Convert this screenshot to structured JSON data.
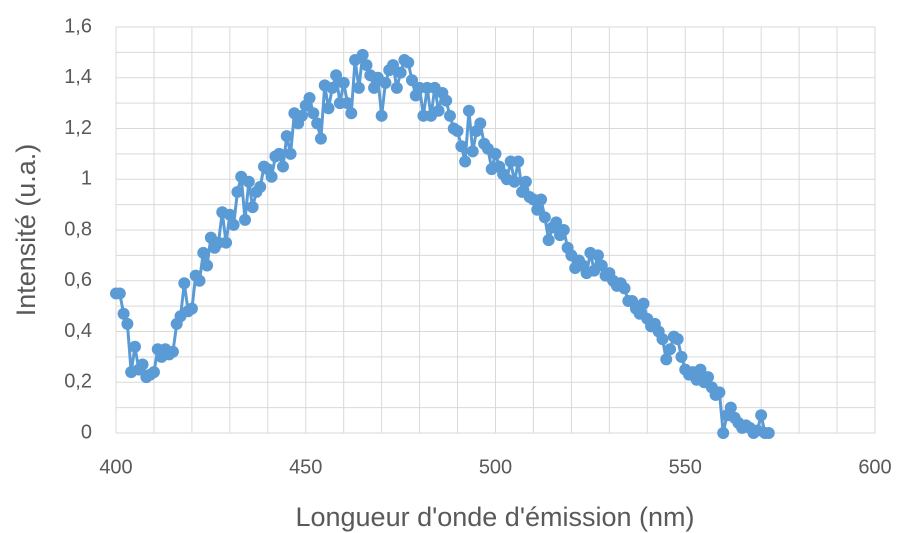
{
  "chart_data": {
    "type": "line",
    "xlabel": "Longueur d'onde d'émission (nm)",
    "ylabel": "Intensité (u.a.)",
    "color": "#5b9bd5",
    "markers": true,
    "grid": true,
    "xlim": [
      400,
      600
    ],
    "ylim": [
      0,
      1.6
    ],
    "xticks": [
      400,
      450,
      500,
      550,
      600
    ],
    "yticks": [
      0,
      {
        "value": 0.2,
        "label": "0,2"
      },
      {
        "value": 0.4,
        "label": "0,4"
      },
      {
        "value": 0.6,
        "label": "0,6"
      },
      {
        "value": 0.8,
        "label": "0,8"
      },
      1,
      {
        "value": 1.2,
        "label": "1,2"
      },
      {
        "value": 1.4,
        "label": "1,4"
      },
      {
        "value": 1.6,
        "label": "1,6"
      }
    ],
    "xminor": [
      410,
      420,
      430,
      440,
      460,
      470,
      480,
      490,
      510,
      520,
      530,
      540,
      560,
      570,
      580,
      590
    ],
    "yminor": [
      0.1,
      0.3,
      0.5,
      0.7,
      0.9,
      1.1,
      1.3,
      1.5
    ],
    "x": [
      400,
      401,
      402,
      403,
      404,
      405,
      406,
      407,
      408,
      409,
      410,
      411,
      412,
      413,
      414,
      415,
      416,
      417,
      418,
      419,
      420,
      421,
      422,
      423,
      424,
      425,
      426,
      427,
      428,
      429,
      430,
      431,
      432,
      433,
      434,
      435,
      436,
      437,
      438,
      439,
      440,
      441,
      442,
      443,
      444,
      445,
      446,
      447,
      448,
      449,
      450,
      451,
      452,
      453,
      454,
      455,
      456,
      457,
      458,
      459,
      460,
      461,
      462,
      463,
      464,
      465,
      466,
      467,
      468,
      469,
      470,
      471,
      472,
      473,
      474,
      475,
      476,
      477,
      478,
      479,
      480,
      481,
      482,
      483,
      484,
      485,
      486,
      487,
      488,
      489,
      490,
      491,
      492,
      493,
      494,
      495,
      496,
      497,
      498,
      499,
      500,
      501,
      502,
      503,
      504,
      505,
      506,
      507,
      508,
      509,
      510,
      511,
      512,
      513,
      514,
      515,
      516,
      517,
      518,
      519,
      520,
      521,
      522,
      523,
      524,
      525,
      526,
      527,
      528,
      529,
      530,
      531,
      532,
      533,
      534,
      535,
      536,
      537,
      538,
      539,
      540,
      541,
      542,
      543,
      544,
      545,
      546,
      547,
      548,
      549,
      550,
      551,
      552,
      553,
      554,
      555,
      556,
      557,
      558,
      559,
      560,
      561,
      562,
      563,
      564,
      565,
      566,
      567,
      568,
      569,
      570,
      571,
      572
    ],
    "values": [
      0.55,
      0.55,
      0.47,
      0.43,
      0.24,
      0.34,
      0.25,
      0.27,
      0.22,
      0.23,
      0.24,
      0.33,
      0.3,
      0.33,
      0.31,
      0.32,
      0.43,
      0.46,
      0.59,
      0.48,
      0.49,
      0.62,
      0.6,
      0.71,
      0.66,
      0.77,
      0.73,
      0.75,
      0.87,
      0.75,
      0.86,
      0.82,
      0.95,
      1.01,
      0.84,
      0.99,
      0.89,
      0.95,
      0.97,
      1.05,
      1.04,
      1.01,
      1.09,
      1.1,
      1.05,
      1.17,
      1.1,
      1.26,
      1.22,
      1.25,
      1.29,
      1.32,
      1.26,
      1.22,
      1.16,
      1.37,
      1.28,
      1.36,
      1.41,
      1.3,
      1.38,
      1.3,
      1.26,
      1.47,
      1.36,
      1.49,
      1.45,
      1.41,
      1.36,
      1.4,
      1.25,
      1.38,
      1.43,
      1.45,
      1.36,
      1.42,
      1.47,
      1.46,
      1.39,
      1.33,
      1.36,
      1.25,
      1.36,
      1.25,
      1.36,
      1.27,
      1.34,
      1.31,
      1.25,
      1.2,
      1.19,
      1.13,
      1.07,
      1.27,
      1.11,
      1.19,
      1.22,
      1.14,
      1.12,
      1.04,
      1.1,
      1.05,
      1.02,
      1.0,
      1.07,
      0.99,
      1.07,
      0.95,
      0.99,
      0.93,
      0.92,
      0.88,
      0.92,
      0.85,
      0.76,
      0.81,
      0.83,
      0.78,
      0.8,
      0.73,
      0.7,
      0.65,
      0.68,
      0.66,
      0.63,
      0.71,
      0.64,
      0.7,
      0.66,
      0.62,
      0.63,
      0.6,
      0.58,
      0.59,
      0.57,
      0.52,
      0.52,
      0.49,
      0.47,
      0.51,
      0.45,
      0.42,
      0.43,
      0.4,
      0.37,
      0.29,
      0.33,
      0.38,
      0.37,
      0.3,
      0.25,
      0.23,
      0.24,
      0.21,
      0.25,
      0.2,
      0.22,
      0.18,
      0.15,
      0.16,
      0.0,
      0.07,
      0.1,
      0.06,
      0.04,
      0.02,
      0.03,
      0.02,
      0.0,
      0.01,
      0.07,
      0.0,
      0.0
    ]
  }
}
